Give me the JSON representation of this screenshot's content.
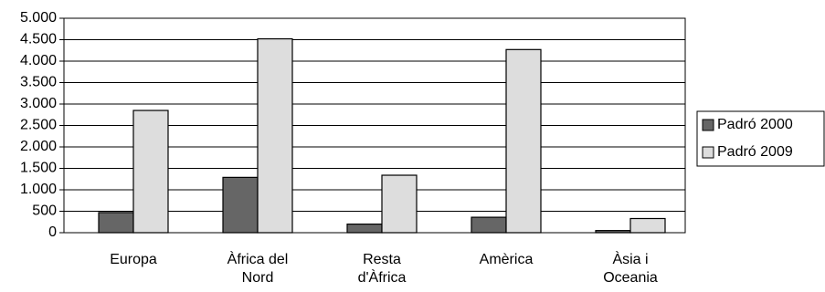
{
  "chart_data": {
    "type": "bar",
    "categories": [
      "Europa",
      "Àfrica del\nNord",
      "Resta\nd'Àfrica",
      "Amèrica",
      "Àsia i\nOceania"
    ],
    "series": [
      {
        "name": "Padró 2000",
        "color": "#666666",
        "values": [
          470,
          1290,
          200,
          360,
          50
        ]
      },
      {
        "name": "Padró 2009",
        "color": "#dddddd",
        "values": [
          2850,
          4520,
          1340,
          4270,
          330
        ]
      }
    ],
    "ylim": [
      0,
      5000
    ],
    "yticks": [
      0,
      500,
      {
        "value": 1000,
        "label": "1.000"
      },
      {
        "value": 1500,
        "label": "1.500"
      },
      {
        "value": 2000,
        "label": "2.000"
      },
      {
        "value": 2500,
        "label": "2.500"
      },
      {
        "value": 3000,
        "label": "3.000"
      },
      {
        "value": 3500,
        "label": "3.500"
      },
      {
        "value": 4000,
        "label": "4.000"
      },
      {
        "value": 4500,
        "label": "4.500"
      },
      {
        "value": 5000,
        "label": "5.000"
      }
    ],
    "grid": true,
    "legend": "right"
  }
}
